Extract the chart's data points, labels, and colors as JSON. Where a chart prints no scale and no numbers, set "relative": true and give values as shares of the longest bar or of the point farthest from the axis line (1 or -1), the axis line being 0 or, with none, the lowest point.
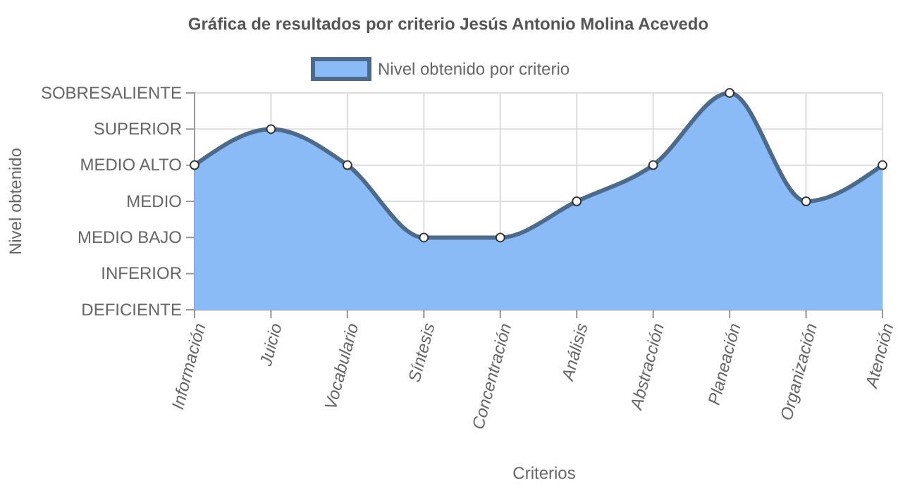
{
  "chart_data": {
    "type": "area",
    "title": "Gráfica de resultados por criterio Jesús Antonio Molina Acevedo",
    "xlabel": "Criterios",
    "annotations": [
      "Nivel obtenido"
    ],
    "categories": [
      "Información",
      "Juicio",
      "Vocabulario",
      "Síntesis",
      "Concentración",
      "Análisis",
      "Abstracción",
      "Planeación",
      "Organización",
      "Atención"
    ],
    "series": [
      {
        "name": "Nivel obtenido por criterio",
        "color": "#8abbf6",
        "values": [
          0.667,
          0.833,
          0.667,
          0.333,
          0.333,
          0.5,
          0.667,
          1,
          0.5,
          0.667
        ]
      }
    ],
    "relative": true,
    "y_categories": [
      "SOBRESALIENTE",
      "SUPERIOR",
      "MEDIO ALTO",
      "MEDIO",
      "MEDIO BAJO",
      "INFERIOR",
      "DEFICIENTE"
    ],
    "grid": true,
    "legend": "top",
    "marker": "circle",
    "line_style": "solid"
  }
}
